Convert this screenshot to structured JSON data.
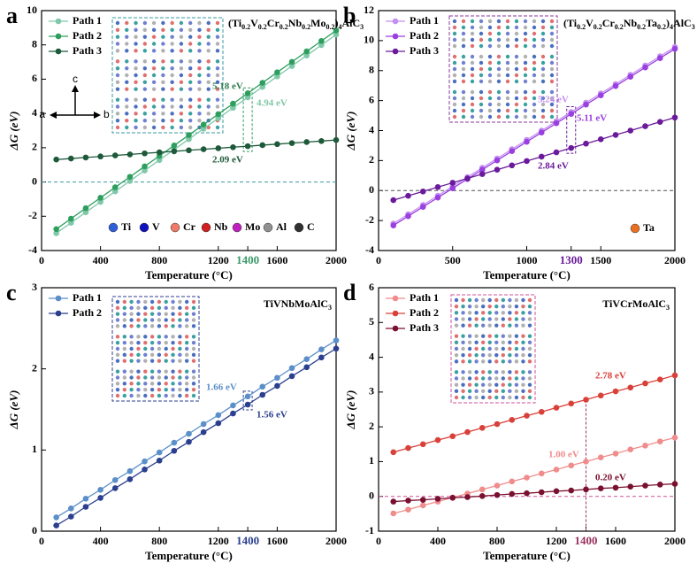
{
  "chart_data": [
    {
      "type": "line",
      "panel": "a",
      "formula": [
        "(Ti",
        "0.2",
        "V",
        "0.2",
        "Cr",
        "0.2",
        "Nb",
        "0.2",
        "Mo",
        "0.2",
        ")",
        "4",
        "AlC",
        "3"
      ],
      "x_label": "Temperature (°C)",
      "y_label": "ΔG (eV)",
      "x": [
        100,
        200,
        300,
        400,
        500,
        600,
        700,
        800,
        900,
        1000,
        1100,
        1200,
        1300,
        1400,
        1500,
        1600,
        1700,
        1800,
        1900,
        2000
      ],
      "xlim": [
        0,
        2000
      ],
      "xticks": [
        0,
        400,
        800,
        1200,
        1600,
        2000
      ],
      "marker_x": 1400,
      "marker_color": "#3a9a6a",
      "marker_box": true,
      "ylim": [
        -4,
        10
      ],
      "yticks": [
        -4,
        -2,
        0,
        2,
        4,
        6,
        8,
        10
      ],
      "hline": 0,
      "hline_color": "#3a9aa0",
      "series": [
        {
          "name": "Path 1",
          "color": "#7fc8a9",
          "values": [
            -2.99,
            -2.38,
            -1.77,
            -1.16,
            -0.55,
            0.06,
            0.67,
            1.28,
            1.89,
            2.5,
            3.11,
            3.72,
            4.33,
            4.94,
            5.55,
            6.16,
            6.77,
            7.38,
            7.99,
            8.6
          ]
        },
        {
          "name": "Path 2",
          "color": "#2e9e5e",
          "values": [
            -2.75,
            -2.14,
            -1.53,
            -0.92,
            -0.31,
            0.3,
            0.91,
            1.52,
            2.13,
            2.74,
            3.35,
            3.96,
            4.57,
            5.18,
            5.79,
            6.4,
            7.01,
            7.62,
            8.23,
            8.84
          ]
        },
        {
          "name": "Path 3",
          "color": "#1e5a3a",
          "values": [
            1.31,
            1.37,
            1.43,
            1.49,
            1.55,
            1.61,
            1.67,
            1.73,
            1.79,
            1.85,
            1.91,
            1.97,
            2.03,
            2.09,
            2.15,
            2.21,
            2.27,
            2.33,
            2.39,
            2.45
          ]
        }
      ],
      "annotations": [
        {
          "text": "5.18 eV",
          "color": "#2e7d4f"
        },
        {
          "text": "4.94 eV",
          "color": "#7fc8a9"
        },
        {
          "text": "2.09 eV",
          "color": "#1e5a3a"
        }
      ],
      "elements": [
        {
          "name": "Ti",
          "color": "#2e5fd8"
        },
        {
          "name": "V",
          "color": "#1010c0"
        },
        {
          "name": "Cr",
          "color": "#f07a6a"
        },
        {
          "name": "Nb",
          "color": "#d02020"
        },
        {
          "name": "Mo",
          "color": "#c020c0"
        },
        {
          "name": "Al",
          "color": "#909090"
        },
        {
          "name": "C",
          "color": "#303030"
        }
      ],
      "inset_axes": [
        "a",
        "b",
        "c"
      ],
      "inset_color": "#3a9aa0"
    },
    {
      "type": "line",
      "panel": "b",
      "formula": [
        "(Ti",
        "0.2",
        "V",
        "0.2",
        "Cr",
        "0.2",
        "Nb",
        "0.2",
        "Ta",
        "0.2",
        ")",
        "4",
        "AlC",
        "3"
      ],
      "x_label": "Temperature (°C)",
      "y_label": "ΔG (eV)",
      "x": [
        100,
        200,
        300,
        400,
        500,
        600,
        700,
        800,
        900,
        1000,
        1100,
        1200,
        1300,
        1400,
        1500,
        1600,
        1700,
        1800,
        1900,
        2000
      ],
      "xlim": [
        0,
        2000
      ],
      "xticks": [
        0,
        500,
        1000,
        1500,
        2000
      ],
      "marker_x": 1300,
      "marker_color": "#6a1a9a",
      "marker_box": true,
      "ylim": [
        -4,
        12
      ],
      "yticks": [
        -4,
        -2,
        0,
        2,
        4,
        6,
        8,
        10,
        12
      ],
      "hline": 0,
      "hline_color": "#555555",
      "series": [
        {
          "name": "Path 1",
          "color": "#c38ff0",
          "values": [
            -2.2,
            -1.58,
            -0.96,
            -0.34,
            0.28,
            0.9,
            1.52,
            2.14,
            2.76,
            3.38,
            4.0,
            4.62,
            5.24,
            5.86,
            6.48,
            7.1,
            7.72,
            8.34,
            8.96,
            9.58
          ]
        },
        {
          "name": "Path 2",
          "color": "#9a3fe0",
          "values": [
            -2.33,
            -1.71,
            -1.09,
            -0.47,
            0.15,
            0.77,
            1.39,
            2.01,
            2.63,
            3.25,
            3.87,
            4.49,
            5.11,
            5.73,
            6.35,
            6.97,
            7.59,
            8.21,
            8.83,
            9.45
          ]
        },
        {
          "name": "Path 3",
          "color": "#6a1a9a",
          "values": [
            -0.64,
            -0.35,
            -0.06,
            0.23,
            0.52,
            0.81,
            1.1,
            1.39,
            1.68,
            1.97,
            2.26,
            2.55,
            2.84,
            3.13,
            3.42,
            3.71,
            4.0,
            4.29,
            4.58,
            4.87
          ]
        }
      ],
      "annotations": [
        {
          "text": "5.24 eV",
          "color": "#c38ff0"
        },
        {
          "text": "5.11 eV",
          "color": "#9a3fe0"
        },
        {
          "text": "2.84 eV",
          "color": "#6a1a9a"
        }
      ],
      "elements": [
        {
          "name": "Ta",
          "color": "#e87020"
        }
      ],
      "inset_color": "#8a3a9a"
    },
    {
      "type": "line",
      "panel": "c",
      "formula": [
        "TiVNbMoAlC",
        "3"
      ],
      "x_label": "Temperature (°C)",
      "y_label": "ΔG (eV)",
      "x": [
        100,
        200,
        300,
        400,
        500,
        600,
        700,
        800,
        900,
        1000,
        1100,
        1200,
        1300,
        1400,
        1500,
        1600,
        1700,
        1800,
        1900,
        2000
      ],
      "xlim": [
        0,
        2000
      ],
      "xticks": [
        0,
        400,
        800,
        1200,
        1600,
        2000
      ],
      "marker_x": 1400,
      "marker_color": "#2b3f8f",
      "marker_box": true,
      "ylim": [
        0,
        3
      ],
      "yticks": [
        0,
        1,
        2,
        3
      ],
      "series": [
        {
          "name": "Path 1",
          "color": "#5b8fc9",
          "values": [
            0.17,
            0.28,
            0.4,
            0.51,
            0.63,
            0.74,
            0.86,
            0.97,
            1.09,
            1.2,
            1.32,
            1.43,
            1.55,
            1.66,
            1.78,
            1.89,
            2.01,
            2.12,
            2.24,
            2.35
          ]
        },
        {
          "name": "Path 2",
          "color": "#2b3f8f",
          "values": [
            0.07,
            0.18,
            0.3,
            0.41,
            0.53,
            0.64,
            0.76,
            0.87,
            0.99,
            1.1,
            1.22,
            1.33,
            1.45,
            1.56,
            1.68,
            1.79,
            1.91,
            2.02,
            2.14,
            2.25
          ]
        }
      ],
      "annotations": [
        {
          "text": "1.66 eV",
          "color": "#5b8fc9"
        },
        {
          "text": "1.56 eV",
          "color": "#2b3f8f"
        }
      ],
      "inset_color": "#2b3f8f"
    },
    {
      "type": "line",
      "panel": "d",
      "formula": [
        "TiVCrMoAlC",
        "3"
      ],
      "x_label": "Temperature (°C)",
      "y_label": "ΔG (eV)",
      "x": [
        100,
        200,
        300,
        400,
        500,
        600,
        700,
        800,
        900,
        1000,
        1100,
        1200,
        1300,
        1400,
        1500,
        1600,
        1700,
        1800,
        1900,
        2000
      ],
      "xlim": [
        0,
        2000
      ],
      "xticks": [
        0,
        400,
        800,
        1200,
        1600,
        2000
      ],
      "marker_x": 1400,
      "marker_color": "#9a3060",
      "marker_box": false,
      "ylim": [
        -1,
        6
      ],
      "yticks": [
        -1,
        0,
        1,
        2,
        3,
        4,
        5,
        6
      ],
      "hline": 0,
      "hline_color": "#d0509a",
      "series": [
        {
          "name": "Path 1",
          "color": "#f08c8c",
          "values": [
            -0.49,
            -0.38,
            -0.26,
            -0.15,
            -0.03,
            0.08,
            0.2,
            0.31,
            0.43,
            0.54,
            0.66,
            0.77,
            0.89,
            1.0,
            1.12,
            1.23,
            1.35,
            1.46,
            1.58,
            1.69
          ]
        },
        {
          "name": "Path 2",
          "color": "#d9403a",
          "values": [
            1.27,
            1.39,
            1.5,
            1.62,
            1.73,
            1.85,
            1.97,
            2.08,
            2.2,
            2.32,
            2.43,
            2.55,
            2.67,
            2.78,
            2.9,
            3.02,
            3.13,
            3.25,
            3.36,
            3.48
          ]
        },
        {
          "name": "Path 3",
          "color": "#7a1030",
          "values": [
            -0.15,
            -0.12,
            -0.1,
            -0.07,
            -0.04,
            -0.02,
            0.01,
            0.04,
            0.07,
            0.09,
            0.12,
            0.15,
            0.17,
            0.2,
            0.23,
            0.25,
            0.28,
            0.31,
            0.34,
            0.36
          ]
        }
      ],
      "annotations": [
        {
          "text": "2.78 eV",
          "color": "#d9403a"
        },
        {
          "text": "1.00 eV",
          "color": "#f08c8c"
        },
        {
          "text": "0.20 eV",
          "color": "#7a1030"
        }
      ],
      "inset_color": "#d0509a"
    }
  ]
}
